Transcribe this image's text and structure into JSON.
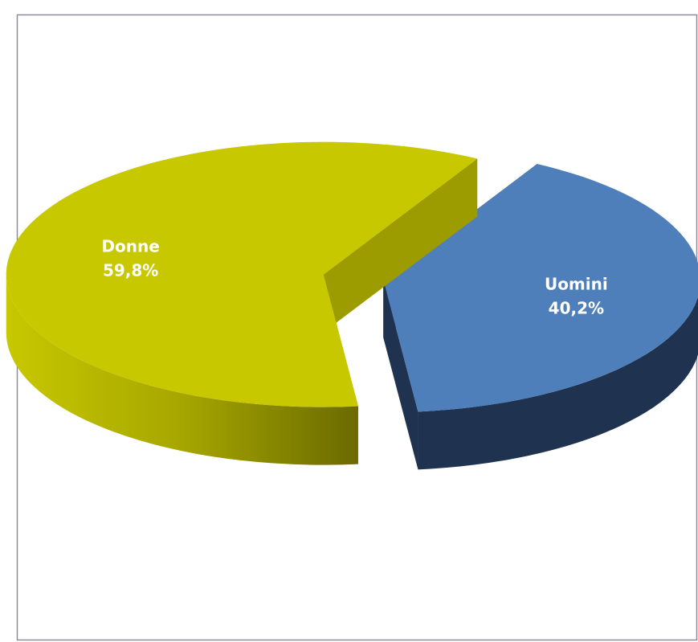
{
  "chart_data": {
    "type": "pie",
    "style": "3d-exploded",
    "title": "",
    "series": [
      {
        "name": "",
        "slices": [
          {
            "label": "Donne",
            "value": 59.8,
            "value_text": "59,8%",
            "color": "#c8c800",
            "side_color": "#9c9c00"
          },
          {
            "label": "Uomini",
            "value": 40.2,
            "value_text": "40,2%",
            "color": "#4f7fba",
            "side_color": "#1f3350"
          }
        ]
      }
    ],
    "legend": "none"
  }
}
